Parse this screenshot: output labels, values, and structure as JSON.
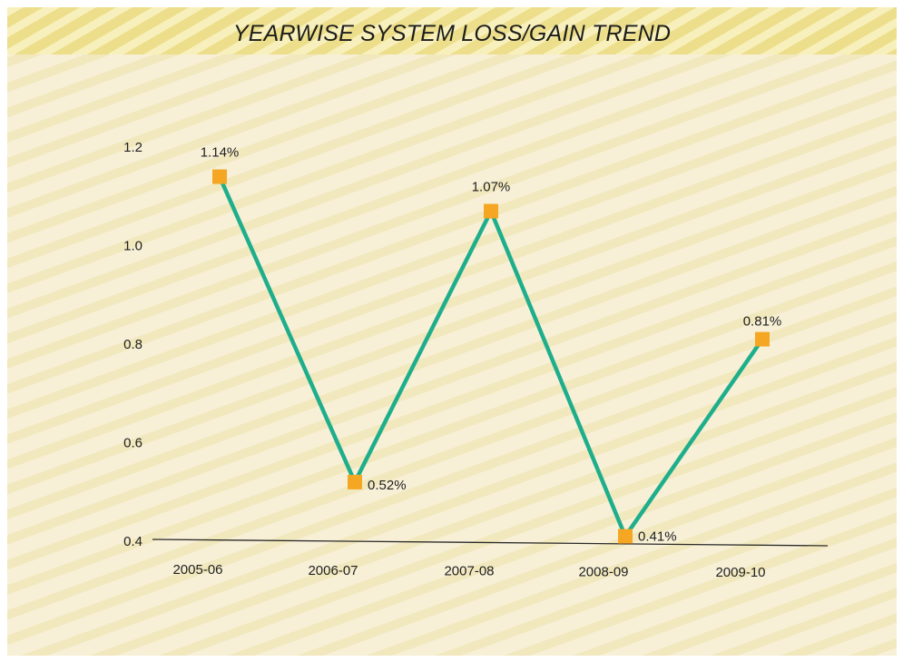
{
  "chart_data": {
    "type": "line",
    "title": "YEARWISE SYSTEM LOSS/GAIN TREND",
    "xlabel": "",
    "ylabel": "",
    "categories": [
      "2005-06",
      "2006-07",
      "2007-08",
      "2008-09",
      "2009-10"
    ],
    "series": [
      {
        "values": [
          1.14,
          0.52,
          1.07,
          0.41,
          0.81
        ],
        "data_labels": [
          "1.14%",
          "0.52%",
          "1.07%",
          "0.41%",
          "0.81%"
        ],
        "line_color": "#1fae8c",
        "marker_color": "#f5a623"
      }
    ],
    "yticks": [
      "0.4",
      "0.6",
      "0.8",
      "1.0",
      "1.2"
    ],
    "ylim": [
      0.4,
      1.2
    ],
    "grid": false,
    "legend": "none"
  }
}
